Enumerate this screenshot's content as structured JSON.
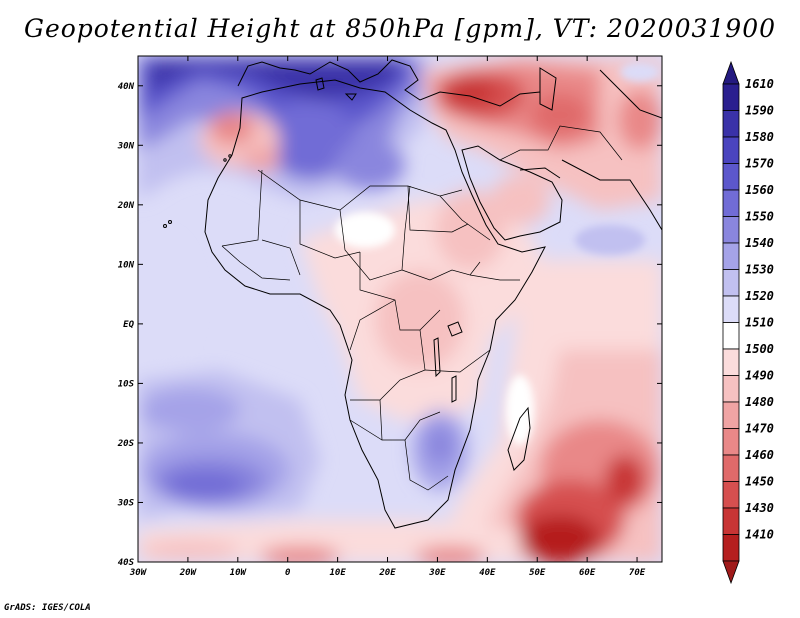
{
  "title": "Geopotential Height at 850hPa [gpm], VT: 2020031900",
  "footer": "GrADS: IGES/COLA",
  "map": {
    "lon_range": [
      -30,
      75
    ],
    "lat_range": [
      -40,
      45
    ],
    "lon_ticks": [
      {
        "value": -30,
        "label": "30W"
      },
      {
        "value": -20,
        "label": "20W"
      },
      {
        "value": -10,
        "label": "10W"
      },
      {
        "value": 0,
        "label": "0"
      },
      {
        "value": 10,
        "label": "10E"
      },
      {
        "value": 20,
        "label": "20E"
      },
      {
        "value": 30,
        "label": "30E"
      },
      {
        "value": 40,
        "label": "40E"
      },
      {
        "value": 50,
        "label": "50E"
      },
      {
        "value": 60,
        "label": "60E"
      },
      {
        "value": 70,
        "label": "70E"
      }
    ],
    "lat_ticks": [
      {
        "value": 40,
        "label": "40N"
      },
      {
        "value": 30,
        "label": "30N"
      },
      {
        "value": 20,
        "label": "20N"
      },
      {
        "value": 10,
        "label": "10N"
      },
      {
        "value": 0,
        "label": "EQ"
      },
      {
        "value": -10,
        "label": "10S"
      },
      {
        "value": -20,
        "label": "20S"
      },
      {
        "value": -30,
        "label": "30S"
      },
      {
        "value": -40,
        "label": "40S"
      }
    ]
  },
  "colorbar": {
    "levels": [
      {
        "label": "1610",
        "color": "#2a1f8f"
      },
      {
        "label": "1590",
        "color": "#3a32a8"
      },
      {
        "label": "1580",
        "color": "#4a44bf"
      },
      {
        "label": "1570",
        "color": "#5c57cc"
      },
      {
        "label": "1560",
        "color": "#716cd6"
      },
      {
        "label": "1550",
        "color": "#8a86de"
      },
      {
        "label": "1540",
        "color": "#a5a3e8"
      },
      {
        "label": "1530",
        "color": "#c1c0f0"
      },
      {
        "label": "1520",
        "color": "#dcdcf8"
      },
      {
        "label": "1510",
        "color": "#ffffff"
      },
      {
        "label": "1500",
        "color": "#fbdcdc"
      },
      {
        "label": "1490",
        "color": "#f6c1c1"
      },
      {
        "label": "1480",
        "color": "#f0a4a4"
      },
      {
        "label": "1470",
        "color": "#e98888"
      },
      {
        "label": "1460",
        "color": "#e06a6a"
      },
      {
        "label": "1450",
        "color": "#d64f4f"
      },
      {
        "label": "1430",
        "color": "#c83535"
      },
      {
        "label": "1410",
        "color": "#b51f1f"
      }
    ],
    "top_cap_color": "#241a80",
    "bottom_cap_color": "#a01a1a"
  }
}
